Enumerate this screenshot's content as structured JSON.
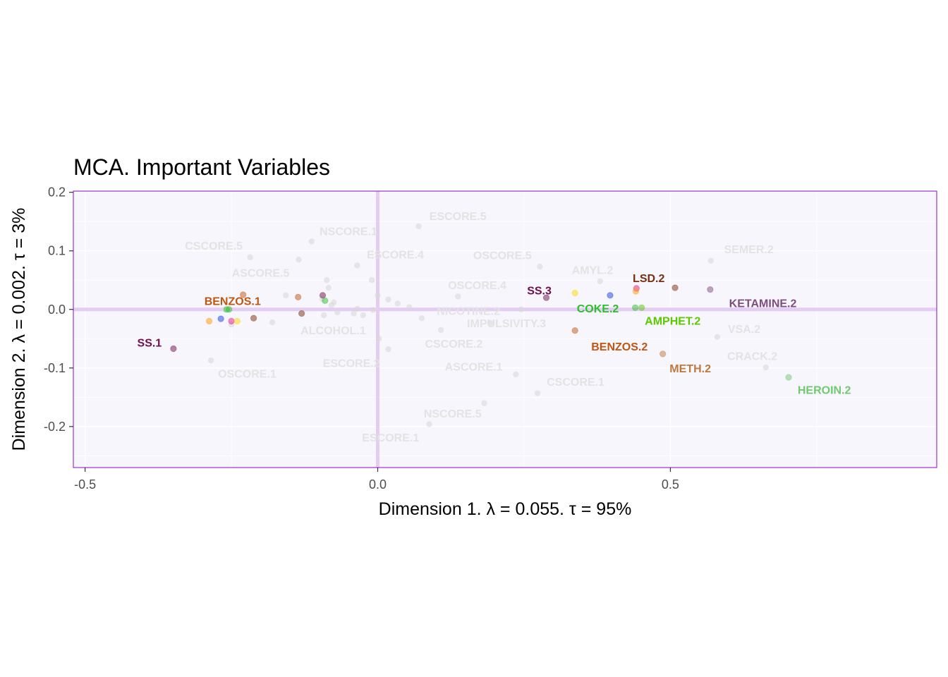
{
  "chart_data": {
    "type": "scatter",
    "title": "MCA. Important Variables",
    "xlabel": "Dimension 1.   λ = 0.055.  τ = 95%",
    "ylabel": "Dimension 2.   λ = 0.002.  τ = 3%",
    "xlim": [
      -0.52,
      0.955
    ],
    "ylim": [
      -0.27,
      0.202
    ],
    "x_ticks": [
      {
        "v": -0.5,
        "label": "-0.5"
      },
      {
        "v": 0.0,
        "label": "0.0"
      },
      {
        "v": 0.5,
        "label": "0.5"
      }
    ],
    "y_ticks": [
      {
        "v": 0.2,
        "label": "0.2"
      },
      {
        "v": 0.1,
        "label": "0.1"
      },
      {
        "v": 0.0,
        "label": "0.0"
      },
      {
        "v": -0.1,
        "label": "-0.1"
      },
      {
        "v": -0.2,
        "label": "-0.2"
      }
    ],
    "grid": true,
    "colors": {
      "panel_bg": "#f7f6fd",
      "panel_border": "#9b30d9",
      "reference_lines": "#e3cdf2",
      "grid": "#ffffff",
      "faded": "#d9d9d9"
    },
    "highlighted_points": [
      {
        "label": "SS.1",
        "x": -0.349,
        "y": -0.067,
        "color": "#6e0f4c",
        "lx": -0.39,
        "ly": -0.056
      },
      {
        "label": "BENZOS.1",
        "x": -0.229,
        "y": 0.025,
        "color": "#c0560f",
        "lx": -0.248,
        "ly": 0.015
      },
      {
        "label": "SS.3",
        "x": 0.288,
        "y": 0.02,
        "color": "#6e0f4c",
        "lx": 0.276,
        "ly": 0.033
      },
      {
        "label": "COKE.2",
        "x": 0.44,
        "y": 0.003,
        "color": "#2bbf2b",
        "lx": 0.376,
        "ly": 0.002
      },
      {
        "label": "LSD.2",
        "x": 0.442,
        "y": 0.036,
        "color": "#7a2e0e",
        "lx": 0.463,
        "ly": 0.054
      },
      {
        "label": "KETAMINE.2",
        "x": 0.568,
        "y": 0.034,
        "color": "#7d4e7d",
        "lx": 0.658,
        "ly": 0.011
      },
      {
        "label": "AMPHET.2",
        "x": 0.451,
        "y": 0.003,
        "color": "#5cc800",
        "lx": 0.504,
        "ly": -0.019
      },
      {
        "label": "BENZOS.2",
        "x": 0.337,
        "y": -0.036,
        "color": "#c0560f",
        "lx": 0.413,
        "ly": -0.063
      },
      {
        "label": "METH.2",
        "x": 0.487,
        "y": -0.076,
        "color": "#c0783d",
        "lx": 0.534,
        "ly": -0.1
      },
      {
        "label": "HEROIN.2",
        "x": 0.702,
        "y": -0.116,
        "color": "#6fc96f",
        "lx": 0.763,
        "ly": -0.137
      }
    ],
    "faded_labels": [
      {
        "label": "ESCORE.5",
        "x": 0.137,
        "y": 0.16
      },
      {
        "label": "NSCORE.1",
        "x": -0.05,
        "y": 0.134
      },
      {
        "label": "CSCORE.5",
        "x": -0.28,
        "y": 0.109
      },
      {
        "label": "ESCORE.4",
        "x": 0.03,
        "y": 0.094
      },
      {
        "label": "OSCORE.5",
        "x": 0.213,
        "y": 0.093
      },
      {
        "label": "SEMER.2",
        "x": 0.634,
        "y": 0.103
      },
      {
        "label": "ASCORE.5",
        "x": -0.2,
        "y": 0.063
      },
      {
        "label": "AMYL.2",
        "x": 0.367,
        "y": 0.068
      },
      {
        "label": "OSCORE.4",
        "x": 0.17,
        "y": 0.042
      },
      {
        "label": "NICOTINE.2",
        "x": 0.155,
        "y": -0.002
      },
      {
        "label": "IMPULSIVITY.3",
        "x": 0.22,
        "y": -0.023
      },
      {
        "label": "ALCOHOL.1",
        "x": -0.076,
        "y": -0.035
      },
      {
        "label": "VSA.2",
        "x": 0.626,
        "y": -0.033
      },
      {
        "label": "CSCORE.2",
        "x": 0.13,
        "y": -0.058
      },
      {
        "label": "CRACK.2",
        "x": 0.64,
        "y": -0.079
      },
      {
        "label": "OSCORE.1",
        "x": -0.223,
        "y": -0.109
      },
      {
        "label": "ESCORE.2",
        "x": -0.045,
        "y": -0.091
      },
      {
        "label": "ASCORE.1",
        "x": 0.164,
        "y": -0.097
      },
      {
        "label": "CSCORE.1",
        "x": 0.338,
        "y": -0.123
      },
      {
        "label": "NSCORE.5",
        "x": 0.128,
        "y": -0.177
      },
      {
        "label": "ESCORE.1",
        "x": 0.022,
        "y": -0.218
      }
    ],
    "faded_points": [
      {
        "x": 0.07,
        "y": 0.142
      },
      {
        "x": -0.113,
        "y": 0.116
      },
      {
        "x": -0.218,
        "y": 0.089
      },
      {
        "x": -0.135,
        "y": 0.085
      },
      {
        "x": -0.035,
        "y": 0.075
      },
      {
        "x": 0.277,
        "y": 0.073
      },
      {
        "x": 0.569,
        "y": 0.083
      },
      {
        "x": -0.01,
        "y": 0.05
      },
      {
        "x": -0.087,
        "y": 0.05
      },
      {
        "x": 0.38,
        "y": 0.048
      },
      {
        "x": -0.084,
        "y": 0.037
      },
      {
        "x": -0.157,
        "y": 0.024
      },
      {
        "x": 0.0,
        "y": 0.024
      },
      {
        "x": 0.137,
        "y": 0.022
      },
      {
        "x": -0.095,
        "y": 0.018
      },
      {
        "x": 0.018,
        "y": 0.017
      },
      {
        "x": -0.075,
        "y": 0.012
      },
      {
        "x": -0.079,
        "y": 0.007
      },
      {
        "x": 0.034,
        "y": 0.01
      },
      {
        "x": 0.054,
        "y": 0.004
      },
      {
        "x": -0.035,
        "y": 0.001
      },
      {
        "x": -0.008,
        "y": -0.001
      },
      {
        "x": -0.069,
        "y": -0.005
      },
      {
        "x": -0.041,
        "y": -0.007
      },
      {
        "x": -0.092,
        "y": -0.01
      },
      {
        "x": -0.025,
        "y": -0.01
      },
      {
        "x": 0.075,
        "y": -0.015
      },
      {
        "x": -0.18,
        "y": -0.022
      },
      {
        "x": 0.192,
        "y": -0.023
      },
      {
        "x": -0.25,
        "y": -0.026
      },
      {
        "x": 0.108,
        "y": -0.035
      },
      {
        "x": 0.58,
        "y": -0.047
      },
      {
        "x": 0.002,
        "y": -0.05
      },
      {
        "x": 0.018,
        "y": -0.068
      },
      {
        "x": -0.285,
        "y": -0.087
      },
      {
        "x": 0.663,
        "y": -0.099
      },
      {
        "x": 0.236,
        "y": -0.111
      },
      {
        "x": 0.273,
        "y": -0.143
      },
      {
        "x": 0.182,
        "y": -0.16
      },
      {
        "x": 0.088,
        "y": -0.196
      },
      {
        "x": 0.245,
        "y": 0.0
      },
      {
        "x": -0.261,
        "y": 0.0
      }
    ],
    "small_points": [
      {
        "x": -0.23,
        "y": 0.025,
        "color": "#c0560f"
      },
      {
        "x": -0.136,
        "y": 0.021,
        "color": "#c0560f"
      },
      {
        "x": -0.094,
        "y": 0.024,
        "color": "#6e0f4c"
      },
      {
        "x": -0.09,
        "y": 0.015,
        "color": "#2bbf2b"
      },
      {
        "x": -0.254,
        "y": 0.0,
        "color": "#2bbf2b"
      },
      {
        "x": -0.258,
        "y": 0.0,
        "color": "#2bbf2b"
      },
      {
        "x": -0.13,
        "y": -0.007,
        "color": "#7a2e0e"
      },
      {
        "x": -0.212,
        "y": -0.015,
        "color": "#7a2e0e"
      },
      {
        "x": -0.268,
        "y": -0.016,
        "color": "#1a3fe0"
      },
      {
        "x": -0.25,
        "y": -0.02,
        "color": "#e0198a"
      },
      {
        "x": -0.24,
        "y": -0.02,
        "color": "#ffd700"
      },
      {
        "x": -0.288,
        "y": -0.02,
        "color": "#ff9900"
      },
      {
        "x": -0.349,
        "y": -0.067,
        "color": "#6e0f4c"
      },
      {
        "x": 0.288,
        "y": 0.02,
        "color": "#6e0f4c"
      },
      {
        "x": 0.337,
        "y": 0.028,
        "color": "#ffd700"
      },
      {
        "x": 0.397,
        "y": 0.024,
        "color": "#1a3fe0"
      },
      {
        "x": 0.442,
        "y": 0.036,
        "color": "#e0198a"
      },
      {
        "x": 0.441,
        "y": 0.031,
        "color": "#ff9900"
      },
      {
        "x": 0.508,
        "y": 0.037,
        "color": "#7a2e0e"
      },
      {
        "x": 0.568,
        "y": 0.034,
        "color": "#7d4e7d"
      },
      {
        "x": 0.44,
        "y": 0.003,
        "color": "#2bbf2b"
      },
      {
        "x": 0.451,
        "y": 0.003,
        "color": "#5cc800"
      },
      {
        "x": 0.337,
        "y": -0.036,
        "color": "#c0560f"
      },
      {
        "x": 0.487,
        "y": -0.076,
        "color": "#c0783d"
      },
      {
        "x": 0.702,
        "y": -0.116,
        "color": "#6fc96f"
      }
    ]
  }
}
